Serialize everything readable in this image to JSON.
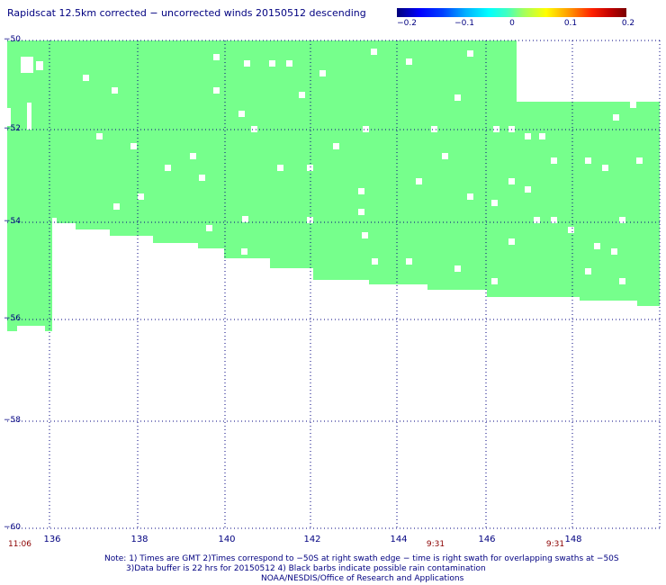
{
  "title": "Rapidscat 12.5km corrected − uncorrected winds 20150512 descending",
  "colorbar": {
    "labels": [
      "−0.2",
      "−0.1",
      "0",
      "0.1",
      "0.2"
    ],
    "range": [
      -0.2,
      0.2
    ]
  },
  "latitude_labels": [
    "−50",
    "−52",
    "−54",
    "−56",
    "−58",
    "−60"
  ],
  "longitude_labels": [
    "136",
    "138",
    "140",
    "142",
    "144",
    "146",
    "148"
  ],
  "time_labels": [
    "11:06",
    "9:31",
    "9:31"
  ],
  "notes": {
    "line1": "Note: 1) Times are GMT 2)Times correspond to −50S at right swath edge − time is right swath for overlapping swaths at −50S",
    "line2": "3)Data buffer is 22 hrs for 20150512 4) Black barbs indicate possible rain contamination",
    "line3": "NOAA/NESDIS/Office of Research and Applications"
  },
  "colors": {
    "swath": "#76ff8c",
    "grid": "#000080",
    "text": "#000080",
    "time": "#8b0000"
  },
  "map_extent": {
    "lon_range": [
      135,
      150
    ],
    "lat_range": [
      -60,
      -50
    ]
  }
}
